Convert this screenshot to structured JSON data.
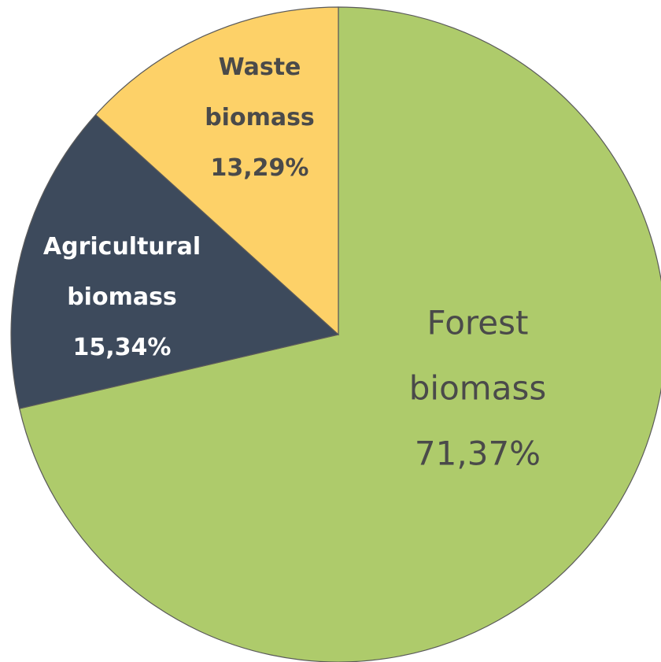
{
  "chart_data": {
    "type": "pie",
    "categories": [
      "Forest biomass",
      "Agricultural biomass",
      "Waste biomass"
    ],
    "values": [
      71.37,
      15.34,
      13.29
    ],
    "value_labels": [
      "71,37%",
      "15,34%",
      "13,29%"
    ],
    "colors": [
      "#aecb6b",
      "#3d4a5c",
      "#fdd168"
    ]
  }
}
